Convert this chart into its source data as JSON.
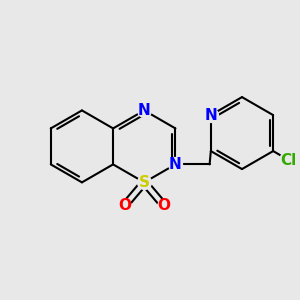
{
  "background_color": "#e8e8e8",
  "bond_color": "#000000",
  "bond_width": 1.5,
  "atoms": {
    "S": {
      "color": "#cccc00",
      "fontsize": 11
    },
    "N": {
      "color": "#0000ff",
      "fontsize": 11
    },
    "O": {
      "color": "#ff0000",
      "fontsize": 11
    },
    "Cl": {
      "color": "#33aa00",
      "fontsize": 11
    }
  },
  "figsize": [
    3.0,
    3.0
  ],
  "dpi": 100
}
